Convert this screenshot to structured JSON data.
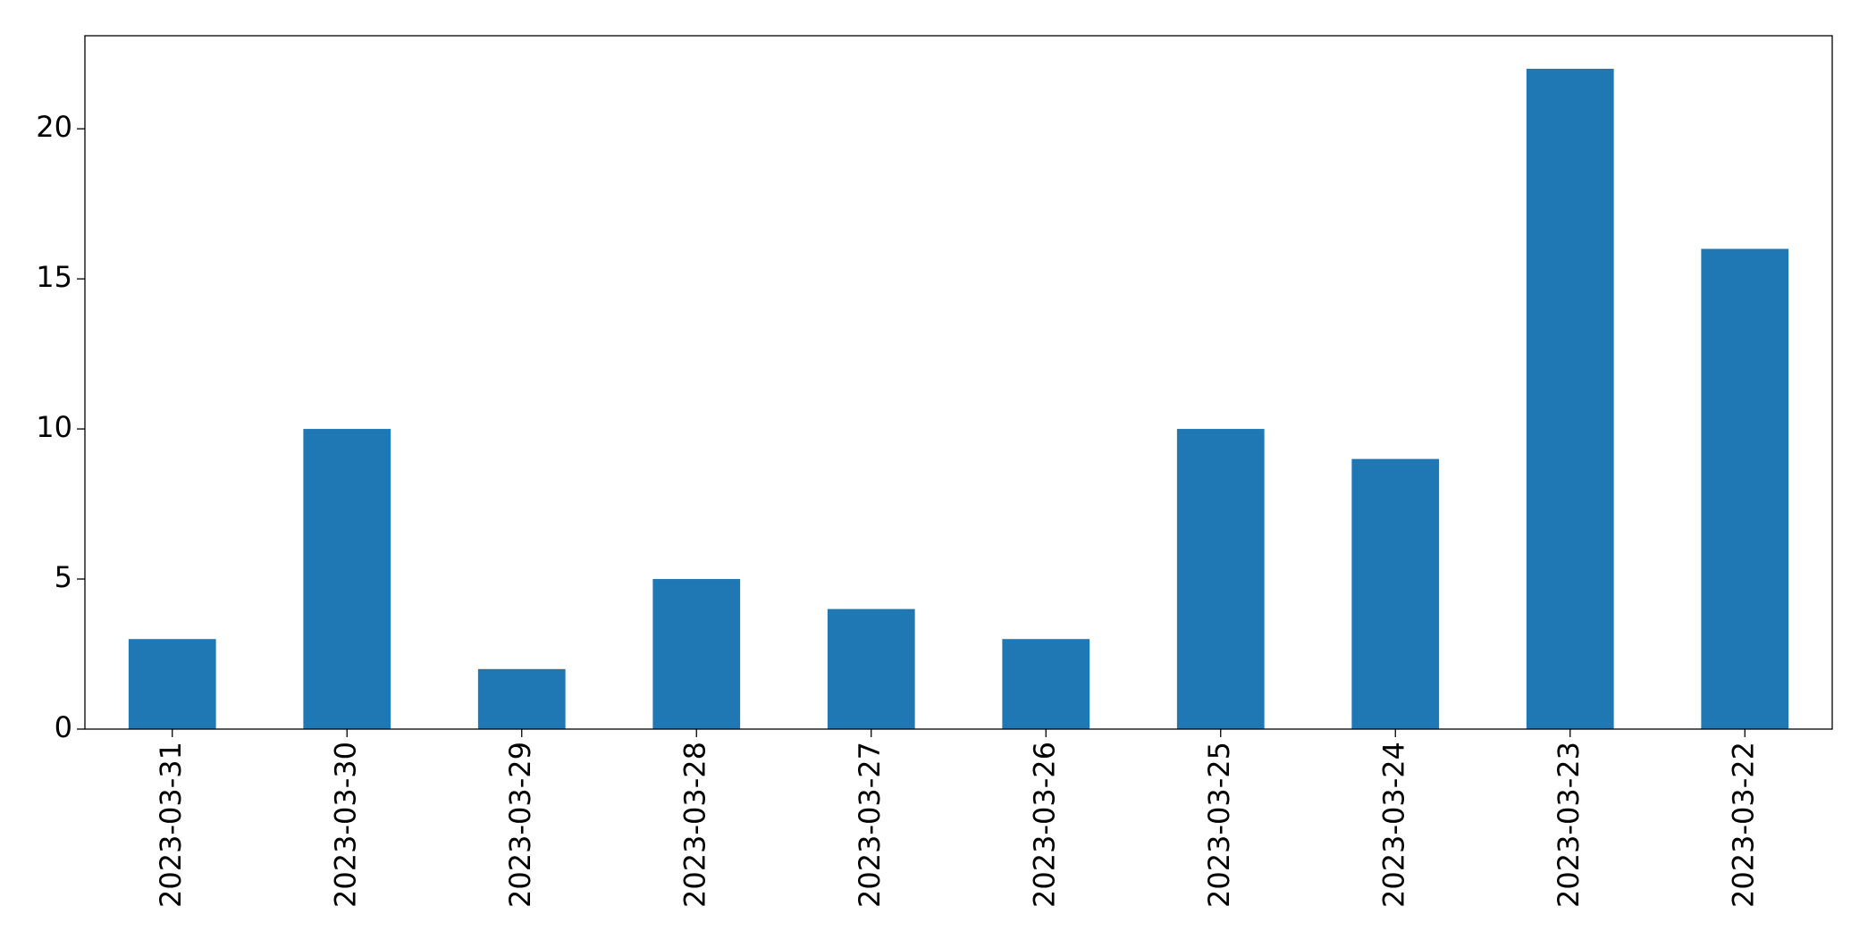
{
  "chart_data": {
    "type": "bar",
    "categories": [
      "2023-03-31",
      "2023-03-30",
      "2023-03-29",
      "2023-03-28",
      "2023-03-27",
      "2023-03-26",
      "2023-03-25",
      "2023-03-24",
      "2023-03-23",
      "2023-03-22"
    ],
    "values": [
      3,
      10,
      2,
      5,
      4,
      3,
      10,
      9,
      22,
      16
    ],
    "color": "#1f77b4",
    "ylim": [
      0,
      23.1
    ],
    "yticks": [
      0,
      5,
      10,
      15,
      20
    ],
    "grid": false
  }
}
